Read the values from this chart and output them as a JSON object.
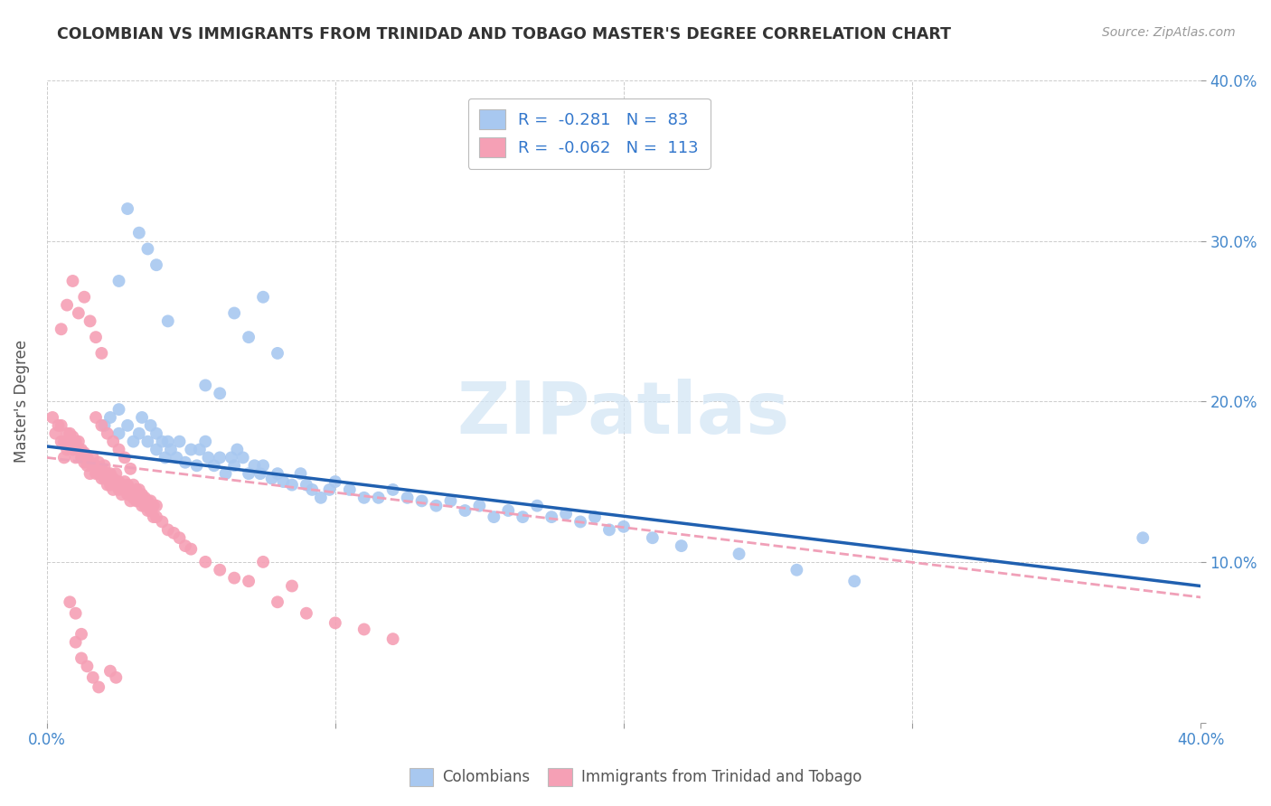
{
  "title": "COLOMBIAN VS IMMIGRANTS FROM TRINIDAD AND TOBAGO MASTER'S DEGREE CORRELATION CHART",
  "source": "Source: ZipAtlas.com",
  "ylabel": "Master's Degree",
  "xlim": [
    0.0,
    0.4
  ],
  "ylim": [
    0.0,
    0.4
  ],
  "xticks": [
    0.0,
    0.1,
    0.2,
    0.3,
    0.4
  ],
  "yticks": [
    0.0,
    0.1,
    0.2,
    0.3,
    0.4
  ],
  "xticklabels": [
    "0.0%",
    "",
    "",
    "",
    "40.0%"
  ],
  "yticklabels_right": [
    "",
    "10.0%",
    "20.0%",
    "30.0%",
    "40.0%"
  ],
  "blue_R": -0.281,
  "blue_N": 83,
  "pink_R": -0.062,
  "pink_N": 113,
  "blue_color": "#A8C8F0",
  "pink_color": "#F5A0B5",
  "blue_line_color": "#2060B0",
  "pink_line_color": "#F0A0B8",
  "watermark_color": "#D0E4F5",
  "watermark": "ZIPatlas",
  "blue_line_x0": 0.0,
  "blue_line_y0": 0.172,
  "blue_line_x1": 0.4,
  "blue_line_y1": 0.085,
  "pink_line_x0": 0.0,
  "pink_line_y0": 0.165,
  "pink_line_x1": 0.4,
  "pink_line_y1": 0.078,
  "blue_scatter_x": [
    0.02,
    0.022,
    0.025,
    0.025,
    0.028,
    0.03,
    0.032,
    0.033,
    0.035,
    0.036,
    0.038,
    0.038,
    0.04,
    0.041,
    0.042,
    0.043,
    0.045,
    0.046,
    0.048,
    0.05,
    0.052,
    0.053,
    0.055,
    0.056,
    0.058,
    0.06,
    0.062,
    0.064,
    0.065,
    0.066,
    0.068,
    0.07,
    0.072,
    0.074,
    0.075,
    0.078,
    0.08,
    0.082,
    0.085,
    0.088,
    0.09,
    0.092,
    0.095,
    0.098,
    0.1,
    0.105,
    0.11,
    0.115,
    0.12,
    0.125,
    0.13,
    0.135,
    0.14,
    0.145,
    0.15,
    0.155,
    0.16,
    0.165,
    0.17,
    0.175,
    0.18,
    0.185,
    0.19,
    0.195,
    0.2,
    0.21,
    0.22,
    0.24,
    0.26,
    0.28,
    0.055,
    0.06,
    0.065,
    0.07,
    0.075,
    0.08,
    0.025,
    0.028,
    0.032,
    0.035,
    0.038,
    0.042,
    0.38
  ],
  "blue_scatter_y": [
    0.185,
    0.19,
    0.18,
    0.195,
    0.185,
    0.175,
    0.18,
    0.19,
    0.175,
    0.185,
    0.17,
    0.18,
    0.175,
    0.165,
    0.175,
    0.17,
    0.165,
    0.175,
    0.162,
    0.17,
    0.16,
    0.17,
    0.175,
    0.165,
    0.16,
    0.165,
    0.155,
    0.165,
    0.16,
    0.17,
    0.165,
    0.155,
    0.16,
    0.155,
    0.16,
    0.152,
    0.155,
    0.15,
    0.148,
    0.155,
    0.148,
    0.145,
    0.14,
    0.145,
    0.15,
    0.145,
    0.14,
    0.14,
    0.145,
    0.14,
    0.138,
    0.135,
    0.138,
    0.132,
    0.135,
    0.128,
    0.132,
    0.128,
    0.135,
    0.128,
    0.13,
    0.125,
    0.128,
    0.12,
    0.122,
    0.115,
    0.11,
    0.105,
    0.095,
    0.088,
    0.21,
    0.205,
    0.255,
    0.24,
    0.265,
    0.23,
    0.275,
    0.32,
    0.305,
    0.295,
    0.285,
    0.25,
    0.115
  ],
  "pink_scatter_x": [
    0.002,
    0.003,
    0.004,
    0.005,
    0.005,
    0.006,
    0.006,
    0.007,
    0.007,
    0.008,
    0.008,
    0.009,
    0.009,
    0.01,
    0.01,
    0.011,
    0.011,
    0.012,
    0.012,
    0.013,
    0.013,
    0.014,
    0.014,
    0.015,
    0.015,
    0.016,
    0.016,
    0.017,
    0.017,
    0.018,
    0.018,
    0.019,
    0.019,
    0.02,
    0.02,
    0.021,
    0.021,
    0.022,
    0.022,
    0.023,
    0.023,
    0.024,
    0.024,
    0.025,
    0.025,
    0.026,
    0.026,
    0.027,
    0.027,
    0.028,
    0.028,
    0.029,
    0.029,
    0.03,
    0.03,
    0.031,
    0.031,
    0.032,
    0.032,
    0.033,
    0.033,
    0.034,
    0.034,
    0.035,
    0.035,
    0.036,
    0.036,
    0.037,
    0.037,
    0.038,
    0.038,
    0.04,
    0.042,
    0.044,
    0.046,
    0.048,
    0.05,
    0.055,
    0.06,
    0.065,
    0.07,
    0.08,
    0.09,
    0.1,
    0.11,
    0.12,
    0.005,
    0.007,
    0.009,
    0.011,
    0.013,
    0.015,
    0.017,
    0.019,
    0.075,
    0.085,
    0.017,
    0.019,
    0.021,
    0.023,
    0.025,
    0.027,
    0.029,
    0.01,
    0.012,
    0.014,
    0.016,
    0.018,
    0.022,
    0.024,
    0.008,
    0.01,
    0.012
  ],
  "pink_scatter_y": [
    0.19,
    0.18,
    0.185,
    0.175,
    0.185,
    0.175,
    0.165,
    0.18,
    0.17,
    0.18,
    0.172,
    0.17,
    0.178,
    0.175,
    0.165,
    0.17,
    0.175,
    0.165,
    0.17,
    0.162,
    0.168,
    0.16,
    0.165,
    0.155,
    0.162,
    0.16,
    0.165,
    0.155,
    0.16,
    0.155,
    0.162,
    0.152,
    0.158,
    0.152,
    0.16,
    0.148,
    0.155,
    0.148,
    0.155,
    0.145,
    0.152,
    0.148,
    0.155,
    0.145,
    0.15,
    0.142,
    0.148,
    0.145,
    0.15,
    0.142,
    0.148,
    0.138,
    0.145,
    0.14,
    0.148,
    0.138,
    0.145,
    0.138,
    0.145,
    0.135,
    0.142,
    0.135,
    0.14,
    0.132,
    0.138,
    0.132,
    0.138,
    0.128,
    0.135,
    0.128,
    0.135,
    0.125,
    0.12,
    0.118,
    0.115,
    0.11,
    0.108,
    0.1,
    0.095,
    0.09,
    0.088,
    0.075,
    0.068,
    0.062,
    0.058,
    0.052,
    0.245,
    0.26,
    0.275,
    0.255,
    0.265,
    0.25,
    0.24,
    0.23,
    0.1,
    0.085,
    0.19,
    0.185,
    0.18,
    0.175,
    0.17,
    0.165,
    0.158,
    0.05,
    0.04,
    0.035,
    0.028,
    0.022,
    0.032,
    0.028,
    0.075,
    0.068,
    0.055
  ]
}
